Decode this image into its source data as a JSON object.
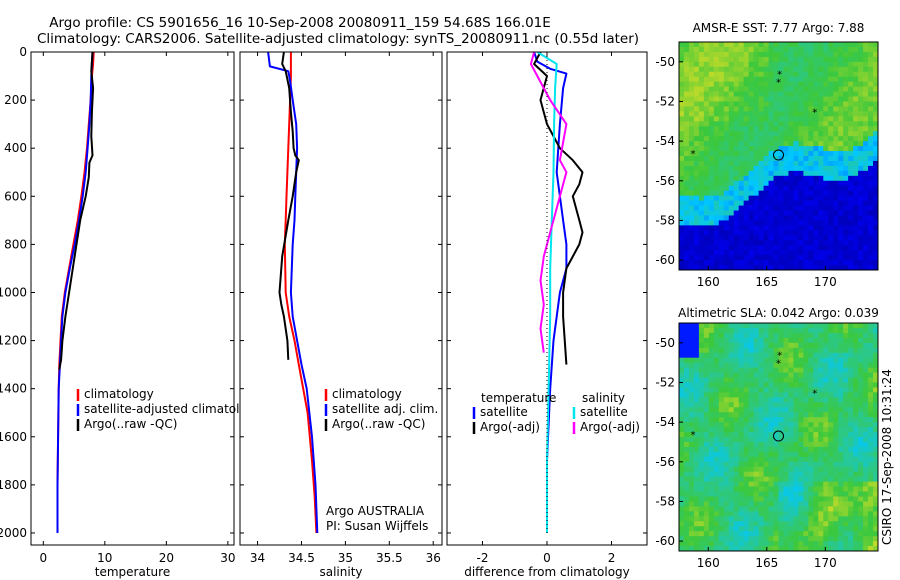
{
  "figure": {
    "title_line1": "Argo profile: CS 5901656_16 10-Sep-2008 20080911_159 54.68S 166.01E",
    "title_line2": "Climatology: CARS2006. Satellite-adjusted climatology: synTS_20080911.nc (0.55d later)",
    "footer_credit_1": "Argo AUSTRALIA",
    "footer_credit_2": "PI: Susan Wijffels",
    "side_stamp": "CSIRO 17-Sep-2008 10:31:24"
  },
  "colors": {
    "climatology": "#ff0000",
    "satellite": "#0000ff",
    "argo": "#000000",
    "salinity_satellite": "#00e5ee",
    "salinity_argo": "#ff00ff"
  },
  "chart_data": [
    {
      "type": "line",
      "xlabel": "temperature",
      "ylabel": "",
      "xlim": [
        -2,
        31
      ],
      "ylim": [
        2050,
        0
      ],
      "xticks": [
        0,
        10,
        20,
        30
      ],
      "yticks": [
        0,
        200,
        400,
        600,
        800,
        1000,
        1200,
        1400,
        1600,
        1800,
        2000
      ],
      "legend": [
        "climatology",
        "satellite-adjusted climatology",
        "Argo(..raw -QC)"
      ],
      "legend_placement": "right-middle",
      "series": [
        {
          "name": "climatology",
          "color": "#ff0000",
          "x": [
            8.2,
            8.1,
            7.9,
            7.7,
            7.4,
            7.1,
            6.7,
            6.2,
            5.6,
            4.9,
            4.2,
            3.5,
            3.0,
            2.8,
            2.6,
            2.5,
            2.4,
            2.3,
            2.3
          ],
          "y": [
            0,
            50,
            100,
            200,
            300,
            400,
            500,
            600,
            700,
            800,
            900,
            1000,
            1100,
            1200,
            1300,
            1400,
            1600,
            1800,
            2000
          ]
        },
        {
          "name": "satellite-adjusted climatology",
          "color": "#0000ff",
          "x": [
            8.0,
            7.9,
            7.8,
            7.7,
            7.5,
            7.2,
            6.9,
            6.4,
            5.8,
            5.1,
            4.3,
            3.6,
            3.1,
            2.9,
            2.7,
            2.5,
            2.4,
            2.3,
            2.3
          ],
          "y": [
            0,
            50,
            100,
            200,
            300,
            400,
            500,
            600,
            700,
            800,
            900,
            1000,
            1100,
            1200,
            1300,
            1400,
            1600,
            1800,
            2000
          ]
        },
        {
          "name": "Argo(..raw -QC)",
          "color": "#000000",
          "x": [
            8.0,
            7.9,
            7.8,
            8.1,
            7.9,
            7.8,
            8.0,
            7.5,
            7.4,
            6.9,
            6.0,
            5.4,
            4.8,
            4.2,
            3.6,
            3.1,
            2.9,
            2.6
          ],
          "y": [
            0,
            40,
            80,
            150,
            250,
            350,
            430,
            460,
            520,
            600,
            700,
            800,
            900,
            1000,
            1100,
            1200,
            1280,
            1320
          ]
        }
      ]
    },
    {
      "type": "line",
      "xlabel": "salinity",
      "ylabel": "",
      "xlim": [
        33.8,
        36.1
      ],
      "ylim": [
        2050,
        0
      ],
      "xticks": [
        34,
        34.5,
        35,
        35.5,
        36
      ],
      "yticks": [],
      "legend": [
        "climatology",
        "satellite adj. clim.",
        "Argo(..raw -QC)"
      ],
      "legend_placement": "right-middle",
      "series": [
        {
          "name": "climatology",
          "color": "#ff0000",
          "x": [
            34.38,
            34.38,
            34.37,
            34.36,
            34.35,
            34.34,
            34.33,
            34.32,
            34.31,
            34.32,
            34.36,
            34.42,
            34.47,
            34.52,
            34.57,
            34.62,
            34.65,
            34.67
          ],
          "y": [
            0,
            100,
            200,
            300,
            400,
            500,
            600,
            700,
            800,
            1000,
            1100,
            1200,
            1300,
            1400,
            1500,
            1700,
            1850,
            2000
          ]
        },
        {
          "name": "satellite adj. clim.",
          "color": "#0000ff",
          "x": [
            34.12,
            34.14,
            34.35,
            34.37,
            34.4,
            34.44,
            34.45,
            34.44,
            34.43,
            34.42,
            34.4,
            34.39,
            34.38,
            34.4,
            34.45,
            34.5,
            34.56,
            34.62,
            34.66,
            34.68
          ],
          "y": [
            0,
            60,
            80,
            120,
            200,
            300,
            400,
            500,
            600,
            700,
            800,
            900,
            1000,
            1100,
            1200,
            1300,
            1400,
            1600,
            1800,
            2000
          ]
        },
        {
          "name": "Argo(..raw -QC)",
          "color": "#000000",
          "x": [
            34.3,
            34.28,
            34.32,
            34.36,
            34.38,
            34.4,
            34.41,
            34.43,
            34.47,
            34.44,
            34.4,
            34.35,
            34.28,
            34.25,
            34.27,
            34.3,
            34.34,
            34.35
          ],
          "y": [
            0,
            50,
            80,
            150,
            250,
            330,
            400,
            430,
            450,
            500,
            600,
            700,
            850,
            1000,
            1050,
            1100,
            1200,
            1280
          ]
        }
      ]
    },
    {
      "type": "line",
      "xlabel": "difference from climatology",
      "ylabel": "",
      "xlim": [
        -3.1,
        3.1
      ],
      "ylim": [
        2050,
        0
      ],
      "xticks": [
        -2,
        0,
        2
      ],
      "yticks": [],
      "legend_groups": [
        {
          "header": "temperature",
          "items": [
            "satellite",
            "Argo(-adj)"
          ]
        },
        {
          "header": "salinity",
          "items": [
            "satellite",
            "Argo(-adj)"
          ]
        }
      ],
      "legend_placement": "right-middle",
      "series": [
        {
          "name": "satellite",
          "group": "temperature",
          "color": "#0000ff",
          "x": [
            -0.4,
            -0.3,
            0.1,
            0.6,
            0.5,
            0.4,
            0.3,
            0.4,
            0.5,
            0.6,
            0.6,
            0.4,
            0.2,
            0.1,
            0.0,
            0.0
          ],
          "y": [
            0,
            40,
            70,
            90,
            150,
            300,
            500,
            600,
            700,
            800,
            900,
            1000,
            1200,
            1400,
            1700,
            2000
          ]
        },
        {
          "name": "Argo(-adj)",
          "group": "temperature",
          "color": "#000000",
          "x": [
            -0.2,
            -0.4,
            0.0,
            -0.2,
            0.0,
            0.4,
            0.8,
            1.1,
            1.0,
            0.8,
            1.0,
            1.1,
            1.0,
            0.6,
            0.5,
            0.5,
            0.6
          ],
          "y": [
            0,
            50,
            100,
            200,
            300,
            400,
            450,
            500,
            550,
            600,
            700,
            750,
            800,
            900,
            1000,
            1100,
            1300
          ]
        },
        {
          "name": "satellite",
          "group": "salinity",
          "color": "#00e5ee",
          "x": [
            -0.3,
            0.3,
            0.25,
            0.22,
            0.2,
            0.15,
            0.1,
            0.1,
            0.05,
            0.0,
            0.0
          ],
          "y": [
            0,
            50,
            150,
            300,
            500,
            700,
            900,
            1100,
            1400,
            1700,
            2000
          ]
        },
        {
          "name": "Argo(-adj)",
          "group": "salinity",
          "color": "#ff00ff",
          "x": [
            -0.4,
            -0.5,
            -0.3,
            -0.1,
            0.1,
            0.6,
            0.4,
            0.6,
            0.5,
            0.3,
            0.1,
            -0.1,
            -0.2,
            -0.1,
            -0.2,
            -0.1
          ],
          "y": [
            0,
            50,
            100,
            150,
            200,
            300,
            450,
            500,
            550,
            650,
            750,
            850,
            950,
            1050,
            1150,
            1250
          ]
        },
        {
          "name": "",
          "group": "zero",
          "color": "#000000",
          "style": "dotted",
          "x": [
            0,
            0
          ],
          "y": [
            0,
            2000
          ]
        }
      ]
    },
    {
      "type": "heatmap",
      "title": "AMSR-E SST: 7.77 Argo: 7.88",
      "xlim": [
        157.5,
        174.5
      ],
      "ylim": [
        -60.5,
        -49
      ],
      "xticks": [
        160,
        165,
        170
      ],
      "yticks": [
        -50,
        -52,
        -54,
        -56,
        -58,
        -60
      ],
      "markers": [
        {
          "kind": "circle",
          "lon": 166.0,
          "lat": -54.7
        },
        {
          "kind": "star",
          "lon": 166.1,
          "lat": -50.6
        },
        {
          "kind": "star",
          "lon": 166.0,
          "lat": -51.0
        },
        {
          "kind": "star",
          "lon": 169.1,
          "lat": -52.5
        },
        {
          "kind": "star",
          "lon": 158.7,
          "lat": -54.6
        }
      ]
    },
    {
      "type": "heatmap",
      "title": "Altimetric SLA: 0.042 Argo: 0.039",
      "xlim": [
        157.5,
        174.5
      ],
      "ylim": [
        -60.5,
        -49
      ],
      "xticks": [
        160,
        165,
        170
      ],
      "yticks": [
        -50,
        -52,
        -54,
        -56,
        -58,
        -60
      ],
      "markers": [
        {
          "kind": "circle",
          "lon": 166.0,
          "lat": -54.7
        },
        {
          "kind": "star",
          "lon": 166.1,
          "lat": -50.6
        },
        {
          "kind": "star",
          "lon": 166.0,
          "lat": -51.0
        },
        {
          "kind": "star",
          "lon": 169.1,
          "lat": -52.5
        },
        {
          "kind": "star",
          "lon": 158.7,
          "lat": -54.6
        }
      ]
    }
  ]
}
